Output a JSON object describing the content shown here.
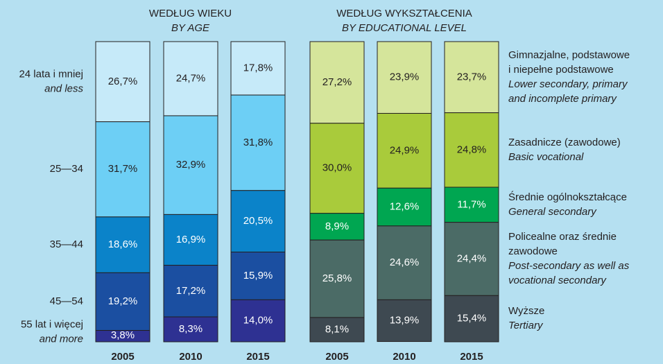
{
  "chart_data": [
    {
      "type": "stacked_bar",
      "title": "WEDŁUG WIEKU",
      "subtitle": "BY AGE",
      "legend": "left",
      "categories": [
        "2005",
        "2010",
        "2015"
      ],
      "ylim": [
        0,
        100
      ],
      "series": [
        {
          "name": [
            "24 lata i mniej"
          ],
          "name_en": [
            "and less"
          ],
          "color": "#c6eaf9",
          "values": [
            26.7,
            24.7,
            17.8
          ],
          "value_labels": [
            "26,7%",
            "24,7%",
            "17,8%"
          ]
        },
        {
          "name": [
            "25—34"
          ],
          "name_en": [],
          "color": "#6dcff5",
          "values": [
            31.7,
            32.9,
            31.8
          ],
          "value_labels": [
            "31,7%",
            "32,9%",
            "31,8%"
          ]
        },
        {
          "name": [
            "35—44"
          ],
          "name_en": [],
          "color": "#0b83c9",
          "values": [
            18.6,
            16.9,
            20.5
          ],
          "value_labels": [
            "18,6%",
            "16,9%",
            "20,5%"
          ]
        },
        {
          "name": [
            "45—54"
          ],
          "name_en": [],
          "color": "#1b4fa1",
          "values": [
            19.2,
            17.2,
            15.9
          ],
          "value_labels": [
            "19,2%",
            "17,2%",
            "15,9%"
          ]
        },
        {
          "name": [
            "55 lat i więcej"
          ],
          "name_en": [
            "and more"
          ],
          "color": "#2e3192",
          "values": [
            3.8,
            8.3,
            14.0
          ],
          "value_labels": [
            "3,8%",
            "8,3%",
            "14,0%"
          ]
        }
      ]
    },
    {
      "type": "stacked_bar",
      "title": "WEDŁUG WYKSZTAŁCENIA",
      "subtitle": "BY EDUCATIONAL LEVEL",
      "legend": "right",
      "categories": [
        "2005",
        "2010",
        "2015"
      ],
      "ylim": [
        0,
        100
      ],
      "series": [
        {
          "name": [
            "Gimnazjalne, podstawowe",
            "i niepełne podstawowe"
          ],
          "name_en": [
            "Lower secondary, primary",
            "and incomplete primary"
          ],
          "color": "#d5e59b",
          "values": [
            27.2,
            23.9,
            23.7
          ],
          "value_labels": [
            "27,2%",
            "23,9%",
            "23,7%"
          ]
        },
        {
          "name": [
            "Zasadnicze (zawodowe)"
          ],
          "name_en": [
            "Basic vocational"
          ],
          "color": "#a9cb3b",
          "values": [
            30.0,
            24.9,
            24.8
          ],
          "value_labels": [
            "30,0%",
            "24,9%",
            "24,8%"
          ]
        },
        {
          "name": [
            "Średnie ogólnokształcące"
          ],
          "name_en": [
            "General secondary"
          ],
          "color": "#00a651",
          "values": [
            8.9,
            12.6,
            11.7
          ],
          "value_labels": [
            "8,9%",
            "12,6%",
            "11,7%"
          ]
        },
        {
          "name": [
            "Policealne oraz średnie",
            "zawodowe"
          ],
          "name_en": [
            "Post-secondary as well as",
            "vocational secondary"
          ],
          "color": "#4b6b66",
          "values": [
            25.8,
            24.6,
            24.4
          ],
          "value_labels": [
            "25,8%",
            "24,6%",
            "24,4%"
          ]
        },
        {
          "name": [
            "Wyższe"
          ],
          "name_en": [
            "Tertiary"
          ],
          "color": "#3e4951",
          "values": [
            8.1,
            13.9,
            15.4
          ],
          "value_labels": [
            "8,1%",
            "13,9%",
            "15,4%"
          ]
        }
      ]
    }
  ]
}
